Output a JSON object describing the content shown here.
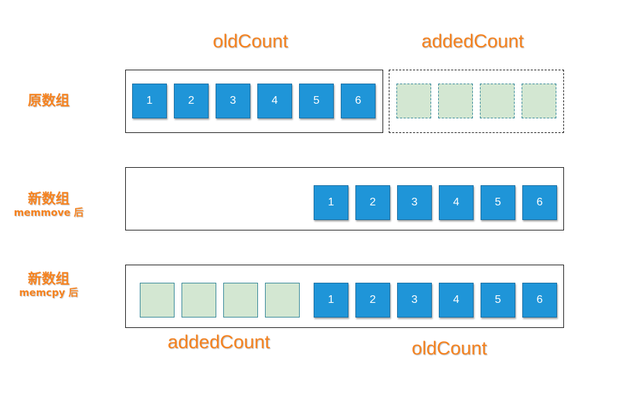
{
  "headings": {
    "top_old": "oldCount",
    "top_added": "addedCount",
    "bottom_added": "addedCount",
    "bottom_old": "oldCount"
  },
  "rows": [
    {
      "label": "原数组",
      "sublabel": ""
    },
    {
      "label": "新数组",
      "sublabel": "memmove 后"
    },
    {
      "label": "新数组",
      "sublabel": "memcpy 后"
    }
  ],
  "elements": [
    "1",
    "2",
    "3",
    "4",
    "5",
    "6"
  ],
  "added_slots": 4,
  "colors": {
    "accent": "#f5821f",
    "element_fill": "#1f95d8",
    "added_fill": "#d3e7d2",
    "added_border": "#3a8a9b"
  }
}
